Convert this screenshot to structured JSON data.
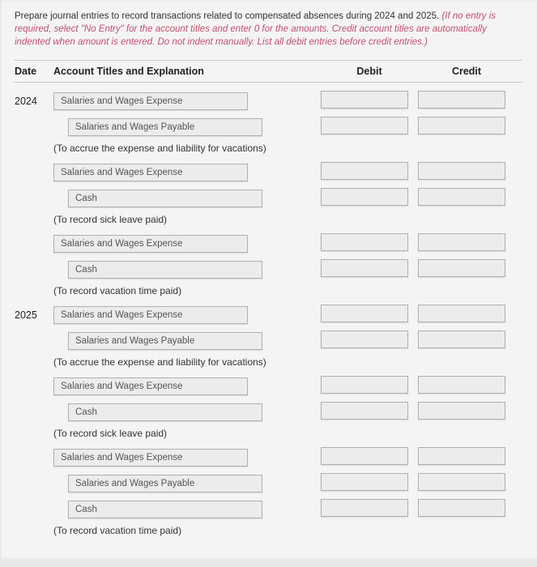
{
  "instructions": {
    "lead": "Prepare journal entries to record transactions related to compensated absences during 2024 and 2025.",
    "emph": " (If no entry is required, select \"No Entry\" for the account titles and enter 0 for the amounts. Credit account titles are automatically indented when amount is entered. Do not indent manually. List all debit entries before credit entries.)"
  },
  "headers": {
    "date": "Date",
    "acct": "Account Titles and Explanation",
    "debit": "Debit",
    "credit": "Credit"
  },
  "groups": [
    {
      "year": "2024",
      "sets": [
        {
          "lines": [
            "Salaries and Wages Expense",
            "Salaries and Wages Payable"
          ],
          "explain": "(To accrue the expense and liability for vacations)"
        },
        {
          "lines": [
            "Salaries and Wages Expense",
            "Cash"
          ],
          "explain": "(To record sick leave paid)"
        },
        {
          "lines": [
            "Salaries and Wages Expense",
            "Cash"
          ],
          "explain": "(To record vacation time paid)"
        }
      ]
    },
    {
      "year": "2025",
      "sets": [
        {
          "lines": [
            "Salaries and Wages Expense",
            "Salaries and Wages Payable"
          ],
          "explain": "(To accrue the expense and liability for vacations)"
        },
        {
          "lines": [
            "Salaries and Wages Expense",
            "Cash"
          ],
          "explain": "(To record sick leave paid)"
        },
        {
          "lines": [
            "Salaries and Wages Expense",
            "Salaries and Wages Payable",
            "Cash"
          ],
          "explain": "(To record vacation time paid)"
        }
      ]
    }
  ],
  "colors": {
    "page_bg": "#f4f4f5",
    "outer_bg": "#e8e8ea",
    "box_bg": "#ececec",
    "box_border": "#b0b0b0",
    "emph_color": "#c0506b"
  }
}
